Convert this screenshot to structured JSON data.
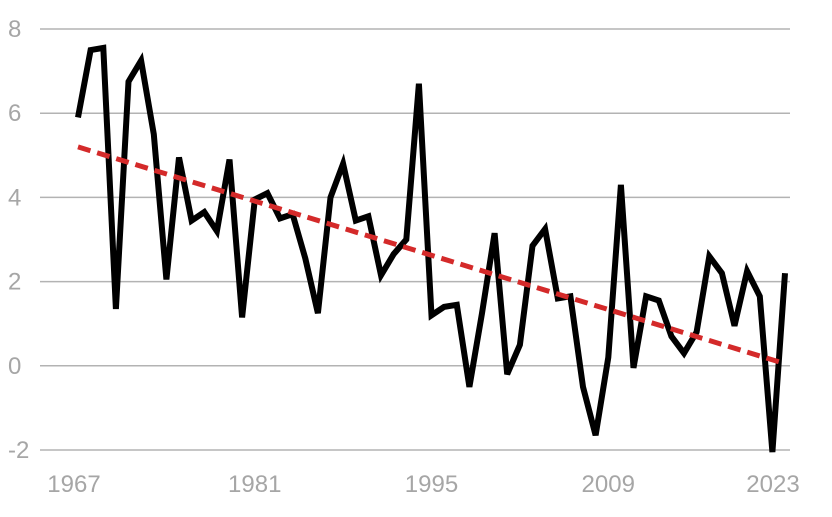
{
  "chart_data": {
    "type": "line",
    "title": "",
    "xlabel": "",
    "ylabel": "",
    "xlim": [
      1967,
      2023
    ],
    "ylim": [
      -2,
      8
    ],
    "x_ticks": [
      1967,
      1981,
      1995,
      2009,
      2023
    ],
    "y_ticks": [
      8,
      6,
      4,
      2,
      0,
      -2
    ],
    "grid": true,
    "legend": "none",
    "series": [
      {
        "color": "#000000",
        "x": [
          1967,
          1968,
          1969,
          1970,
          1971,
          1972,
          1973,
          1974,
          1975,
          1976,
          1977,
          1978,
          1979,
          1980,
          1981,
          1982,
          1983,
          1984,
          1985,
          1986,
          1987,
          1988,
          1989,
          1990,
          1991,
          1992,
          1993,
          1994,
          1995,
          1996,
          1997,
          1998,
          1999,
          2000,
          2001,
          2002,
          2003,
          2004,
          2005,
          2006,
          2007,
          2008,
          2009,
          2010,
          2011,
          2012,
          2013,
          2014,
          2015,
          2016,
          2017,
          2018,
          2019,
          2020,
          2021,
          2022,
          2023
        ],
        "y": [
          5.9,
          7.5,
          7.55,
          1.35,
          6.75,
          7.25,
          5.5,
          2.05,
          4.95,
          3.45,
          3.65,
          3.2,
          4.9,
          1.15,
          3.95,
          4.1,
          3.5,
          3.6,
          2.55,
          1.25,
          4.0,
          4.8,
          3.45,
          3.55,
          2.15,
          2.65,
          3.0,
          6.7,
          1.2,
          1.4,
          1.45,
          -0.5,
          1.25,
          3.15,
          -0.2,
          0.5,
          2.85,
          3.25,
          1.6,
          1.65,
          -0.5,
          -1.65,
          0.2,
          4.3,
          -0.05,
          1.65,
          1.55,
          0.7,
          0.3,
          0.8,
          2.6,
          2.2,
          0.95,
          2.25,
          1.65,
          -2.05,
          2.2
        ]
      },
      {
        "type": "trend",
        "color": "#d42a2a",
        "x": [
          1967,
          2023
        ],
        "y": [
          5.2,
          0.05
        ]
      }
    ]
  }
}
